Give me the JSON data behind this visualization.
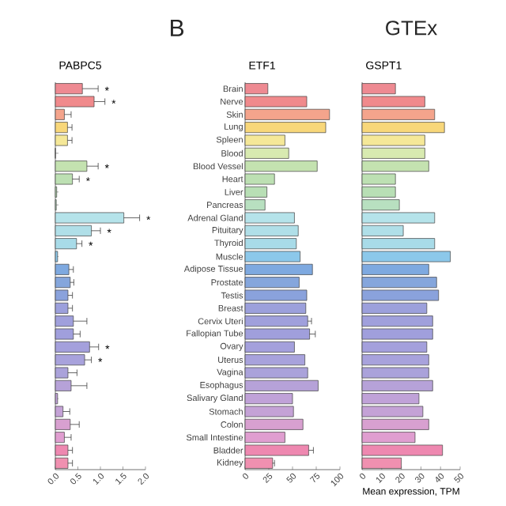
{
  "chart_data": [
    {
      "type": "bar",
      "orientation": "horizontal",
      "title": "PABPC5",
      "tick_labels": "x",
      "categories": [
        "Brain",
        "Nerve",
        "Skin",
        "Lung",
        "Spleen",
        "Blood",
        "Blood Vessel",
        "Heart",
        "Liver",
        "Pancreas",
        "Adrenal Gland",
        "Pituitary",
        "Thyroid",
        "Muscle",
        "Adipose Tissue",
        "Prostate",
        "Testis",
        "Breast",
        "Cervix Uteri",
        "Fallopian Tube",
        "Ovary",
        "Uterus",
        "Vagina",
        "Esophagus",
        "Salivary Gland",
        "Stomach",
        "Colon",
        "Small Intestine",
        "Bladder",
        "Kidney"
      ],
      "values": [
        0.6,
        0.86,
        0.2,
        0.27,
        0.27,
        0.0,
        0.7,
        0.38,
        0.03,
        0.02,
        1.52,
        0.8,
        0.47,
        0.05,
        0.3,
        0.33,
        0.28,
        0.28,
        0.4,
        0.4,
        0.76,
        0.65,
        0.28,
        0.35,
        0.05,
        0.17,
        0.33,
        0.2,
        0.28,
        0.28
      ],
      "errors": [
        [
          0.6,
          0.95
        ],
        [
          0.86,
          1.1
        ],
        [
          0.2,
          0.35
        ],
        [
          0.27,
          0.37
        ],
        [
          0.27,
          0.37
        ],
        null,
        [
          0.7,
          0.95
        ],
        [
          0.38,
          0.53
        ],
        null,
        null,
        [
          1.52,
          1.87
        ],
        [
          0.8,
          1.0
        ],
        [
          0.47,
          0.59
        ],
        null,
        [
          0.3,
          0.4
        ],
        [
          0.33,
          0.41
        ],
        [
          0.28,
          0.38
        ],
        [
          0.28,
          0.38
        ],
        [
          0.4,
          0.7
        ],
        [
          0.4,
          0.55
        ],
        [
          0.76,
          0.96
        ],
        [
          0.65,
          0.8
        ],
        [
          0.28,
          0.48
        ],
        [
          0.35,
          0.7
        ],
        null,
        [
          0.17,
          0.32
        ],
        [
          0.33,
          0.53
        ],
        [
          0.2,
          0.35
        ],
        [
          0.28,
          0.38
        ],
        [
          0.28,
          0.38
        ]
      ],
      "colors": [
        "#ee8a92",
        "#f08a8c",
        "#f4a48c",
        "#f8d77a",
        "#f5e898",
        "#d8eab0",
        "#c4e2b0",
        "#bde0b3",
        "#b8dfb5",
        "#b8e0c0",
        "#b5e3ea",
        "#b0dfe8",
        "#a8dbe8",
        "#8cc8ea",
        "#7ea9e0",
        "#85a6dc",
        "#8aa2dc",
        "#9ca0dc",
        "#a0a0dc",
        "#a09fdc",
        "#a4a0dc",
        "#a8a2dc",
        "#aaa2da",
        "#b6a2d8",
        "#c0a2d8",
        "#c4a2d6",
        "#d8a0d0",
        "#e09ed0",
        "#ee88b0",
        "#f090b0"
      ],
      "xlim": [
        0,
        2.0
      ],
      "xticks": [
        {
          "value": 0,
          "label": "0.0"
        },
        {
          "value": 0.5,
          "label": "0.5"
        },
        {
          "value": 1,
          "label": "1.0"
        },
        {
          "value": 1.5,
          "label": "1.5"
        },
        {
          "value": 2,
          "label": "2.0"
        }
      ],
      "annotations": [
        {
          "text": "*",
          "x": 0.95,
          "y": "Brain"
        },
        {
          "text": "*",
          "x": 1.1,
          "y": "Nerve"
        },
        {
          "text": "*",
          "x": 0.95,
          "y": "Blood Vessel"
        },
        {
          "text": "*",
          "x": 0.53,
          "y": "Heart"
        },
        {
          "text": "*",
          "x": 1.87,
          "y": "Adrenal Gland"
        },
        {
          "text": "*",
          "x": 1.0,
          "y": "Pituitary"
        },
        {
          "text": "*",
          "x": 0.59,
          "y": "Thyroid"
        },
        {
          "text": "*",
          "x": 0.96,
          "y": "Ovary"
        },
        {
          "text": "*",
          "x": 0.8,
          "y": "Uterus"
        }
      ]
    },
    {
      "type": "bar",
      "orientation": "horizontal",
      "title": "ETF1",
      "categories": [
        "Brain",
        "Nerve",
        "Skin",
        "Lung",
        "Spleen",
        "Blood",
        "Blood Vessel",
        "Heart",
        "Liver",
        "Pancreas",
        "Adrenal Gland",
        "Pituitary",
        "Thyroid",
        "Muscle",
        "Adipose Tissue",
        "Prostate",
        "Testis",
        "Breast",
        "Cervix Uteri",
        "Fallopian Tube",
        "Ovary",
        "Uterus",
        "Vagina",
        "Esophagus",
        "Salivary Gland",
        "Stomach",
        "Colon",
        "Small Intestine",
        "Bladder",
        "Kidney"
      ],
      "values": [
        24,
        65,
        89,
        85,
        42,
        46,
        76,
        31,
        23,
        21,
        52,
        56,
        54,
        58,
        71,
        57,
        65,
        64,
        66,
        68,
        52,
        63,
        66,
        77,
        50,
        51,
        61,
        42,
        67,
        29
      ],
      "errors": [
        null,
        null,
        null,
        null,
        null,
        null,
        null,
        null,
        null,
        null,
        null,
        null,
        null,
        null,
        null,
        null,
        null,
        null,
        [
          66,
          70
        ],
        [
          68,
          74
        ],
        null,
        null,
        null,
        null,
        null,
        null,
        null,
        null,
        [
          67,
          72
        ],
        [
          29,
          31
        ]
      ],
      "colors": [
        "#ee8a92",
        "#f08a8c",
        "#f4a48c",
        "#f8d77a",
        "#f5e898",
        "#d8eab0",
        "#c4e2b0",
        "#bde0b3",
        "#b8dfb5",
        "#b8e0c0",
        "#b5e3ea",
        "#b0dfe8",
        "#a8dbe8",
        "#8cc8ea",
        "#7ea9e0",
        "#85a6dc",
        "#8aa2dc",
        "#9ca0dc",
        "#a0a0dc",
        "#a09fdc",
        "#a4a0dc",
        "#a8a2dc",
        "#aaa2da",
        "#b6a2d8",
        "#c0a2d8",
        "#c4a2d6",
        "#d8a0d0",
        "#e09ed0",
        "#ee88b0",
        "#f090b0"
      ],
      "xlim": [
        0,
        100
      ],
      "xticks": [
        0,
        25,
        50,
        75,
        100
      ],
      "annotations": [
        "B"
      ]
    },
    {
      "type": "bar",
      "orientation": "horizontal",
      "title": "GSPT1",
      "tick_labels": "x",
      "xlabel": "Mean expression, TPM",
      "categories": [
        "Brain",
        "Nerve",
        "Skin",
        "Lung",
        "Spleen",
        "Blood",
        "Blood Vessel",
        "Heart",
        "Liver",
        "Pancreas",
        "Adrenal Gland",
        "Pituitary",
        "Thyroid",
        "Muscle",
        "Adipose Tissue",
        "Prostate",
        "Testis",
        "Breast",
        "Cervix Uteri",
        "Fallopian Tube",
        "Ovary",
        "Uterus",
        "Vagina",
        "Esophagus",
        "Salivary Gland",
        "Stomach",
        "Colon",
        "Small Intestine",
        "Bladder",
        "Kidney"
      ],
      "values": [
        17,
        32,
        37,
        42,
        32,
        32,
        34,
        17,
        17,
        19,
        37,
        21,
        37,
        45,
        34,
        38,
        39,
        33,
        36,
        36,
        33,
        34,
        34,
        36,
        29,
        31,
        34,
        27,
        41,
        20
      ],
      "colors": [
        "#ee8a92",
        "#f08a8c",
        "#f4a48c",
        "#f8d77a",
        "#f5e898",
        "#d8eab0",
        "#c4e2b0",
        "#bde0b3",
        "#b8dfb5",
        "#b8e0c0",
        "#b5e3ea",
        "#b0dfe8",
        "#a8dbe8",
        "#8cc8ea",
        "#7ea9e0",
        "#85a6dc",
        "#8aa2dc",
        "#9ca0dc",
        "#a0a0dc",
        "#a09fdc",
        "#a4a0dc",
        "#a8a2dc",
        "#aaa2da",
        "#b6a2d8",
        "#c0a2d8",
        "#c4a2d6",
        "#d8a0d0",
        "#e09ed0",
        "#ee88b0",
        "#f090b0"
      ],
      "xlim": [
        0,
        50
      ],
      "xticks": [
        0,
        10,
        20,
        30,
        40,
        50
      ],
      "annotations": [
        "GTEx"
      ]
    }
  ]
}
